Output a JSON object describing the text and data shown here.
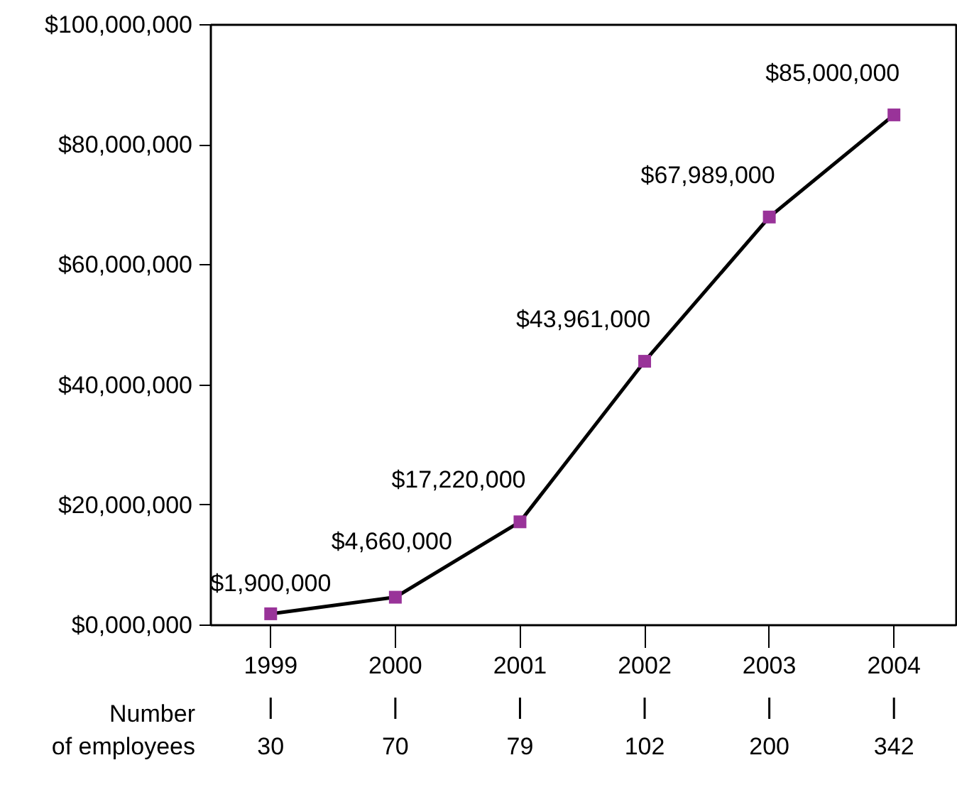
{
  "chart_data": {
    "type": "line",
    "categories": [
      "1999",
      "2000",
      "2001",
      "2002",
      "2003",
      "2004"
    ],
    "series": [
      {
        "color": "#000000",
        "colors": [
          "#993399",
          "#993399",
          "#993399",
          "#993399",
          "#993399",
          "#993399"
        ],
        "values": [
          1900000,
          4660000,
          17220000,
          43961000,
          67989000,
          85000000
        ],
        "value_labels": [
          "$1,900,000",
          "$4,660,000",
          "$17,220,000",
          "$43,961,000",
          "$67,989,000",
          "$85,000,000"
        ]
      }
    ],
    "ylim": [
      0,
      100000000
    ],
    "yticks": [
      {
        "value": 0,
        "label": "$0,000,000"
      },
      {
        "value": 20000000,
        "label": "$20,000,000"
      },
      {
        "value": 40000000,
        "label": "$40,000,000"
      },
      {
        "value": 60000000,
        "label": "$60,000,000"
      },
      {
        "value": 80000000,
        "label": "$80,000,000"
      },
      {
        "value": 100000000,
        "label": "$100,000,000"
      }
    ],
    "annotations": [
      "Number\nof employees",
      "30",
      "70",
      "79",
      "102",
      "200",
      "342"
    ],
    "marker": "square",
    "line_style": "solid",
    "grid": false
  }
}
